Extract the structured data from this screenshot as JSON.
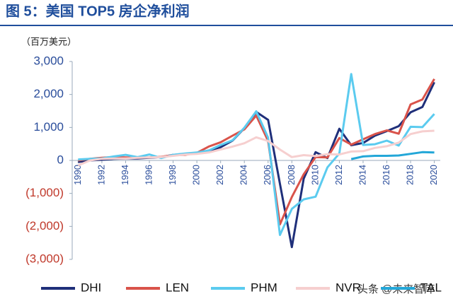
{
  "chart_data": {
    "type": "line",
    "title": "图 5：美国 TOP5 房企净利润",
    "unit_label": "（百万美元）",
    "watermark": "头条 @未来智库",
    "x": [
      1990,
      1991,
      1992,
      1993,
      1994,
      1995,
      1996,
      1997,
      1998,
      1999,
      2000,
      2001,
      2002,
      2003,
      2004,
      2005,
      2006,
      2007,
      2008,
      2009,
      2010,
      2011,
      2012,
      2013,
      2014,
      2015,
      2016,
      2017,
      2018,
      2019,
      2020
    ],
    "xlim": [
      1989.5,
      2020.5
    ],
    "xticks": [
      1990,
      1992,
      1994,
      1996,
      1998,
      2000,
      2002,
      2004,
      2006,
      2008,
      2010,
      2012,
      2014,
      2016,
      2018,
      2020
    ],
    "ylim": [
      -3000,
      3000
    ],
    "yticks": [
      {
        "value": 3000,
        "label": "3,000"
      },
      {
        "value": 2000,
        "label": "2,000"
      },
      {
        "value": 1000,
        "label": "1,000"
      },
      0,
      {
        "value": -1000,
        "label": "(1,000)"
      },
      {
        "value": -2000,
        "label": "(2,000)"
      },
      {
        "value": -3000,
        "label": "(3,000)"
      }
    ],
    "series": [
      {
        "name": "DHI",
        "color": "#1f2f7a",
        "values": [
          -50,
          0,
          20,
          50,
          60,
          60,
          80,
          100,
          170,
          190,
          220,
          300,
          400,
          600,
          980,
          1470,
          1230,
          -710,
          -2630,
          -550,
          250,
          70,
          960,
          460,
          530,
          750,
          890,
          1040,
          1460,
          1620,
          2370
        ]
      },
      {
        "name": "LEN",
        "color": "#d9534a",
        "values": [
          0,
          50,
          80,
          100,
          90,
          80,
          90,
          110,
          160,
          170,
          230,
          420,
          550,
          750,
          940,
          1360,
          590,
          -1940,
          -1110,
          -420,
          100,
          90,
          680,
          480,
          640,
          800,
          910,
          810,
          1700,
          1850,
          2470
        ]
      },
      {
        "name": "PHM",
        "color": "#5bcbef",
        "values": [
          30,
          50,
          60,
          120,
          170,
          100,
          180,
          70,
          170,
          210,
          240,
          300,
          470,
          610,
          990,
          1490,
          690,
          -2260,
          -1470,
          -1180,
          -1100,
          -210,
          210,
          2620,
          470,
          490,
          600,
          450,
          1020,
          1010,
          1410
        ]
      },
      {
        "name": "NVR",
        "color": "#f6cfcf",
        "values": [
          -150,
          0,
          50,
          60,
          60,
          80,
          90,
          100,
          140,
          180,
          200,
          240,
          330,
          420,
          520,
          700,
          590,
          330,
          100,
          160,
          130,
          190,
          180,
          270,
          280,
          380,
          430,
          540,
          800,
          880,
          900
        ]
      },
      {
        "name": "TAL",
        "color": "#23a7d8",
        "values": [
          null,
          null,
          null,
          null,
          null,
          null,
          null,
          null,
          null,
          null,
          null,
          null,
          null,
          null,
          null,
          null,
          null,
          null,
          null,
          null,
          null,
          null,
          null,
          40,
          120,
          140,
          140,
          150,
          200,
          250,
          240
        ]
      }
    ]
  }
}
